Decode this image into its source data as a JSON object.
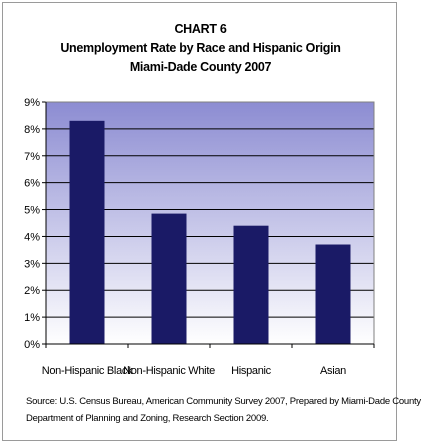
{
  "chart_data": {
    "type": "bar",
    "chart_number": "CHART 6",
    "title": "Unemployment Rate by Race and Hispanic Origin",
    "subtitle": "Miami-Dade County 2007",
    "categories": [
      "Non-Hispanic Black",
      "Non-Hispanic White",
      "Hispanic",
      "Asian"
    ],
    "values": [
      8.3,
      4.85,
      4.4,
      3.7
    ],
    "yunit": "%",
    "ylim": [
      0,
      9
    ],
    "yticks": [
      "0%",
      "1%",
      "2%",
      "3%",
      "4%",
      "5%",
      "6%",
      "7%",
      "8%",
      "9%"
    ],
    "grid": true,
    "legend": "none",
    "colors": {
      "bar": "#1a1a66",
      "plot_gradient_top": "#8c8cd2",
      "plot_gradient_bottom": "#ffffff",
      "grid": "#000000"
    }
  },
  "source": {
    "line1": "Source: U.S. Census Bureau, American Community Survey 2007, Prepared by   Miami-Dade County",
    "line2": "Department of Planning and Zoning, Research Section 2009."
  }
}
